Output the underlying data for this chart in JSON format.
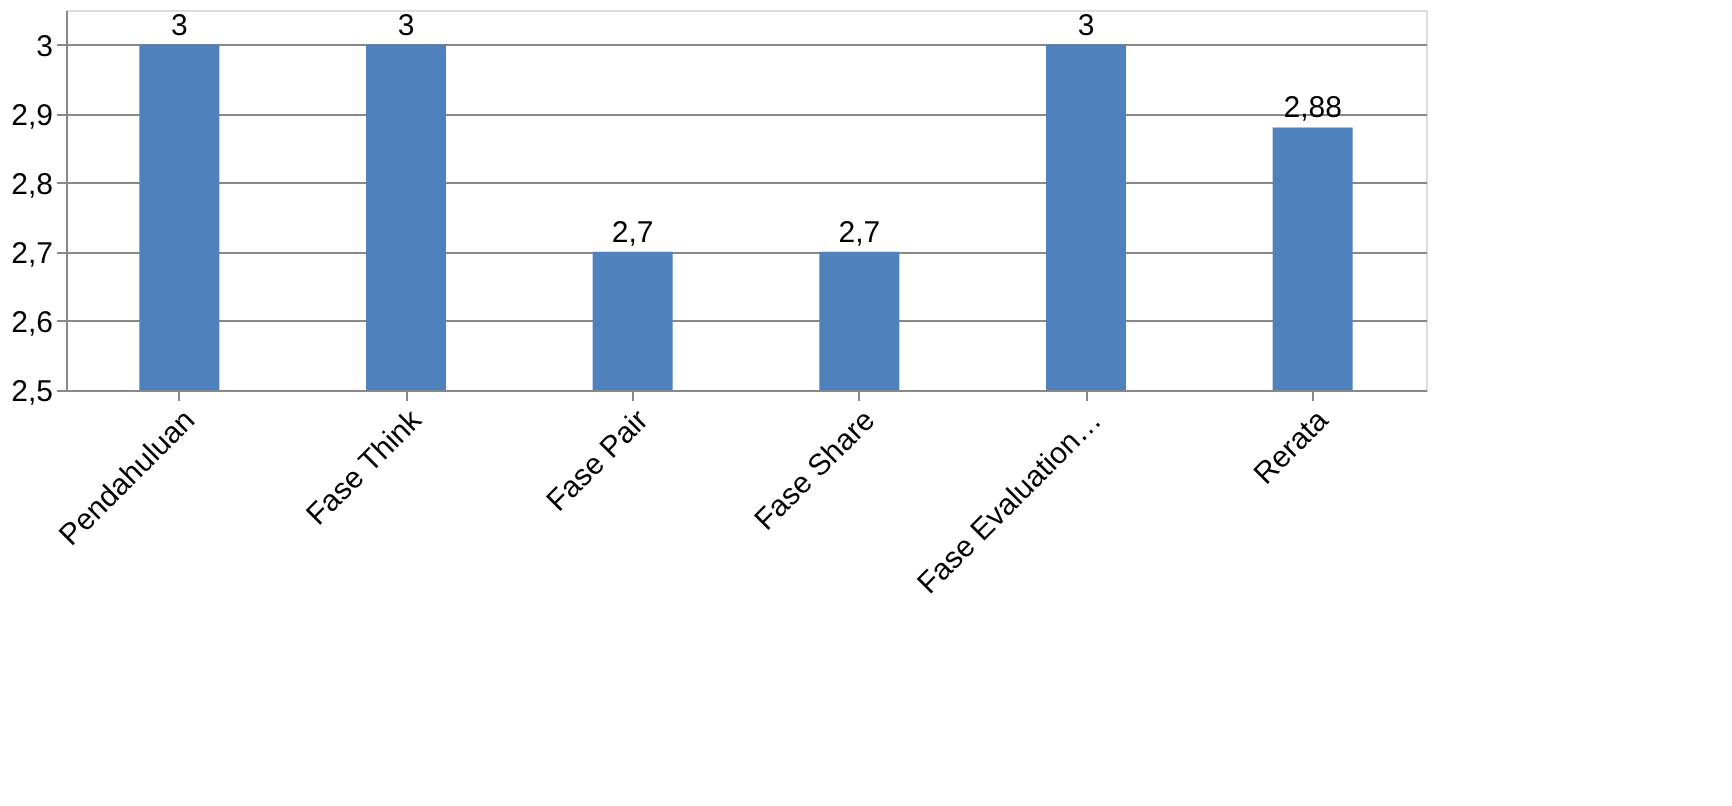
{
  "chart_data": {
    "type": "bar",
    "categories": [
      "Pendahuluan",
      "Fase Think",
      "Fase Pair",
      "Fase Share",
      "Fase Evaluation…",
      "Rerata"
    ],
    "values": [
      3,
      3,
      2.7,
      2.7,
      3,
      2.88
    ],
    "value_labels": [
      "3",
      "3",
      "2,7",
      "2,7",
      "3",
      "2,88"
    ],
    "color": "#4f81bd",
    "ylim": [
      2.5,
      3.05
    ],
    "yticks": [
      {
        "value": 2.5,
        "label": "2,5"
      },
      {
        "value": 2.6,
        "label": "2,6"
      },
      {
        "value": 2.7,
        "label": "2,7"
      },
      {
        "value": 2.8,
        "label": "2,8"
      },
      {
        "value": 2.9,
        "label": "2,9"
      },
      3
    ],
    "grid": "y"
  }
}
